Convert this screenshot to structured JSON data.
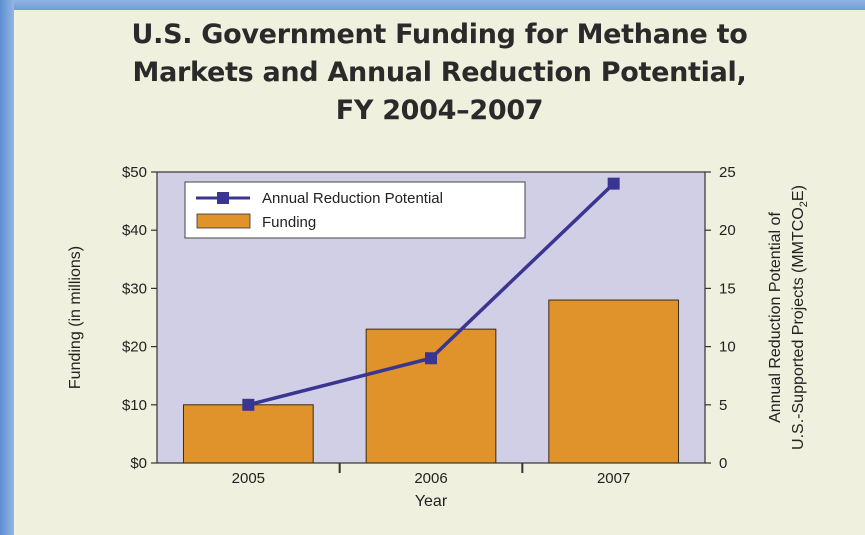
{
  "title": "U.S. Government Funding for Methane to\nMarkets and Annual Reduction Potential,\nFY 2004–2007",
  "chart_data": {
    "type": "bar",
    "categories": [
      "2005",
      "2006",
      "2007"
    ],
    "xlabel": "Year",
    "ylabel": "Funding (in millions)",
    "ylabel_right_line1": "Annual Reduction Potential of",
    "ylabel_right_line2": "U.S.-Supported Projects (MMTCO",
    "ylabel_right_subscript": "2",
    "ylabel_right_suffix": "E)",
    "ylim": [
      0,
      50
    ],
    "ylim_right": [
      0,
      25
    ],
    "y_ticks": [
      "$0",
      "$10",
      "$20",
      "$30",
      "$40",
      "$50"
    ],
    "y_ticks_right": [
      "0",
      "5",
      "10",
      "15",
      "20",
      "25"
    ],
    "legend_position": "top-left",
    "series": [
      {
        "name": "Funding",
        "type": "bar",
        "axis": "left",
        "values": [
          10,
          23,
          28
        ],
        "color": "#e0932b"
      },
      {
        "name": "Annual Reduction Potential",
        "type": "line",
        "axis": "right",
        "values": [
          5,
          9,
          24
        ],
        "color": "#3a3591"
      }
    ],
    "plot_background": "#d1cfe6"
  }
}
